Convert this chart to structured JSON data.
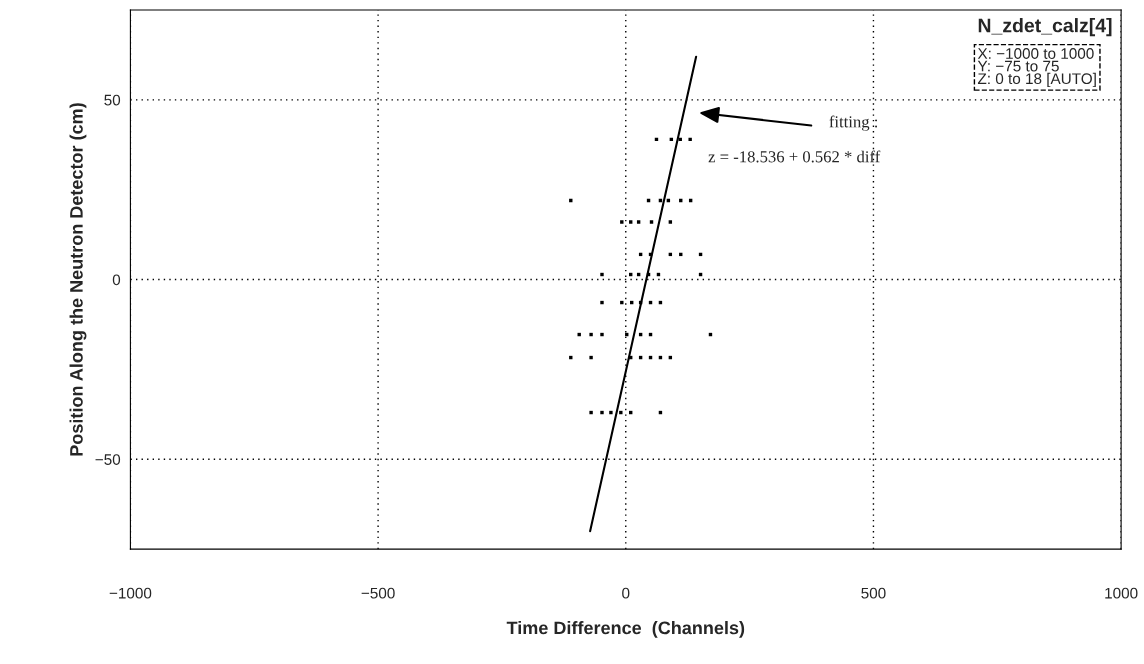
{
  "chart_data": {
    "type": "scatter",
    "title": "N_zdet_calz[4]",
    "xlabel": "Time Difference  (Channels)",
    "ylabel": "Position Along the Neutron Detector (cm)",
    "xlim": [
      -1000,
      1000
    ],
    "ylim": [
      -75,
      75
    ],
    "xticks": [
      {
        "value": -1000,
        "label": "−1000"
      },
      {
        "value": -500,
        "label": "−500"
      },
      0,
      500,
      1000
    ],
    "yticks": [
      {
        "value": -50,
        "label": "−50"
      },
      0,
      50
    ],
    "grid": true,
    "series": [
      {
        "marker": "square",
        "color": "#000000",
        "x": [
          62,
          92,
          110,
          130,
          -111,
          46,
          70,
          86,
          111,
          131,
          -8,
          10,
          26,
          52,
          90,
          30,
          50,
          90,
          111,
          151,
          -48,
          10,
          26,
          46,
          66,
          151,
          -48,
          -8,
          12,
          30,
          50,
          70,
          -94,
          -70,
          -48,
          2,
          30,
          50,
          171,
          -111,
          -70,
          10,
          30,
          50,
          70,
          90,
          -70,
          -48,
          -30,
          -10,
          10,
          70
        ],
        "values": [
          39,
          39,
          39,
          39,
          22,
          22,
          22,
          22,
          22,
          22,
          16,
          16,
          16,
          16,
          16,
          7,
          7,
          7,
          7,
          7,
          1.4,
          1.4,
          1.4,
          1.4,
          1.4,
          1.4,
          -6.4,
          -6.4,
          -6.4,
          -6.4,
          -6.4,
          -6.4,
          -15.3,
          -15.3,
          -15.3,
          -15.3,
          -15.3,
          -15.3,
          -15.3,
          -21.7,
          -21.7,
          -21.7,
          -21.7,
          -21.7,
          -21.7,
          -21.7,
          -37,
          -37,
          -37,
          -37,
          -37,
          -37
        ]
      },
      {
        "type": "line",
        "color": "#000000",
        "x": [
          -72,
          142
        ],
        "values": [
          -70,
          62
        ]
      }
    ],
    "annotations": [
      "fitting :",
      "z = -18.536 + 0.562 * diff",
      "X: −1000 to 1000\nY: −75 to 75\nZ: 0 to 18 [AUTO]"
    ]
  }
}
